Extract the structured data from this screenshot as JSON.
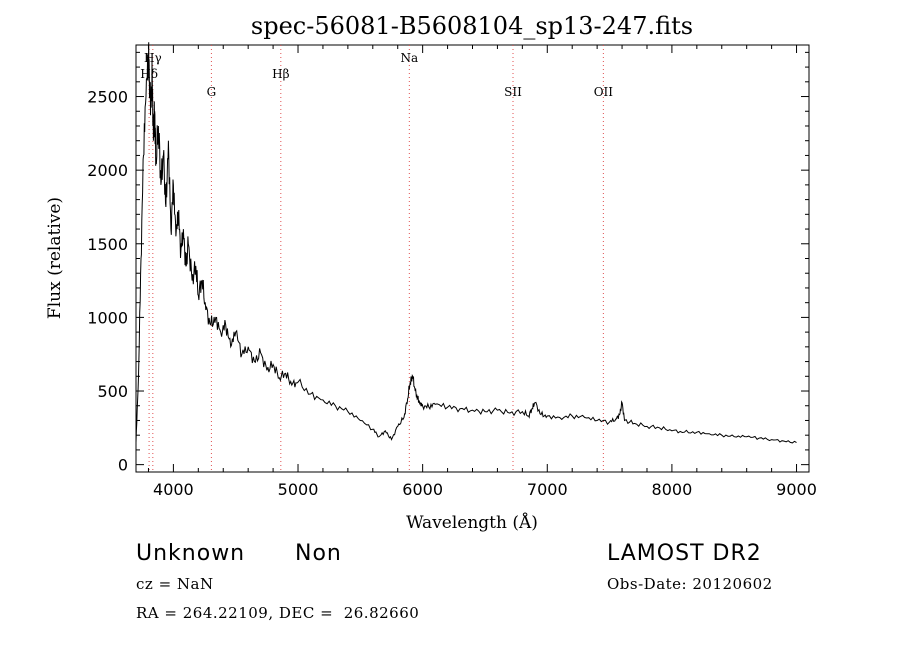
{
  "chart_data": {
    "type": "line",
    "title": "spec-56081-B5608104_sp13-247.fits",
    "xlabel": "Wavelength (Å)",
    "ylabel": "Flux (relative)",
    "xlim": [
      3700,
      9100
    ],
    "ylim": [
      -50,
      2850
    ],
    "x_ticks": [
      4000,
      5000,
      6000,
      7000,
      8000,
      9000
    ],
    "y_ticks": [
      0,
      500,
      1000,
      1500,
      2000,
      2500
    ],
    "grid": false,
    "line_color": "#000000",
    "marker_color": "#e05050",
    "series": [
      {
        "x": [
          3700,
          3720,
          3740,
          3760,
          3780,
          3800,
          3810,
          3820,
          3830,
          3840,
          3850,
          3860,
          3880,
          3900,
          3920,
          3940,
          3960,
          3980,
          4000,
          4020,
          4040,
          4060,
          4080,
          4100,
          4120,
          4150,
          4180,
          4200,
          4230,
          4260,
          4300,
          4340,
          4380,
          4420,
          4460,
          4500,
          4550,
          4600,
          4650,
          4700,
          4750,
          4800,
          4850,
          4900,
          4950,
          5000,
          5100,
          5200,
          5300,
          5400,
          5500,
          5600,
          5650,
          5700,
          5750,
          5800,
          5850,
          5880,
          5900,
          5920,
          5940,
          5960,
          5980,
          6000,
          6050,
          6100,
          6200,
          6300,
          6400,
          6500,
          6600,
          6700,
          6800,
          6850,
          6880,
          6900,
          6950,
          7000,
          7100,
          7200,
          7300,
          7400,
          7500,
          7550,
          7580,
          7600,
          7620,
          7700,
          7800,
          7900,
          8000,
          8100,
          8200,
          8300,
          8400,
          8500,
          8600,
          8700,
          8800,
          8900,
          9000
        ],
        "y": [
          150,
          600,
          1400,
          2100,
          2500,
          2780,
          2600,
          2450,
          2650,
          2200,
          2400,
          2050,
          2300,
          1900,
          2100,
          1750,
          2200,
          1600,
          1900,
          1550,
          1700,
          1450,
          1600,
          1350,
          1500,
          1250,
          1350,
          1150,
          1250,
          1050,
          950,
          1000,
          900,
          950,
          800,
          900,
          750,
          800,
          700,
          760,
          640,
          680,
          590,
          620,
          540,
          560,
          480,
          440,
          400,
          360,
          300,
          240,
          190,
          230,
          170,
          260,
          320,
          450,
          560,
          600,
          500,
          450,
          420,
          400,
          390,
          410,
          390,
          380,
          370,
          360,
          370,
          350,
          360,
          330,
          380,
          420,
          340,
          330,
          320,
          330,
          320,
          300,
          290,
          310,
          340,
          420,
          300,
          280,
          260,
          250,
          230,
          220,
          220,
          210,
          200,
          190,
          190,
          180,
          170,
          160,
          150
        ]
      }
    ],
    "lines": [
      {
        "label": "Hγ",
        "x": 3835
      },
      {
        "label": "Hδ",
        "x": 3805
      },
      {
        "label": "G",
        "x": 4305
      },
      {
        "label": "Hβ",
        "x": 4862
      },
      {
        "label": "Na",
        "x": 5893
      },
      {
        "label": "SII",
        "x": 6725
      },
      {
        "label": "OII",
        "x": 7450
      }
    ]
  },
  "footer": {
    "object_class": "Unknown",
    "subclass": "Non",
    "survey": "LAMOST DR2",
    "redshift": "cz = NaN",
    "obs_date": "Obs-Date: 20120602",
    "coords": "RA = 264.22109, DEC =  26.82660"
  }
}
